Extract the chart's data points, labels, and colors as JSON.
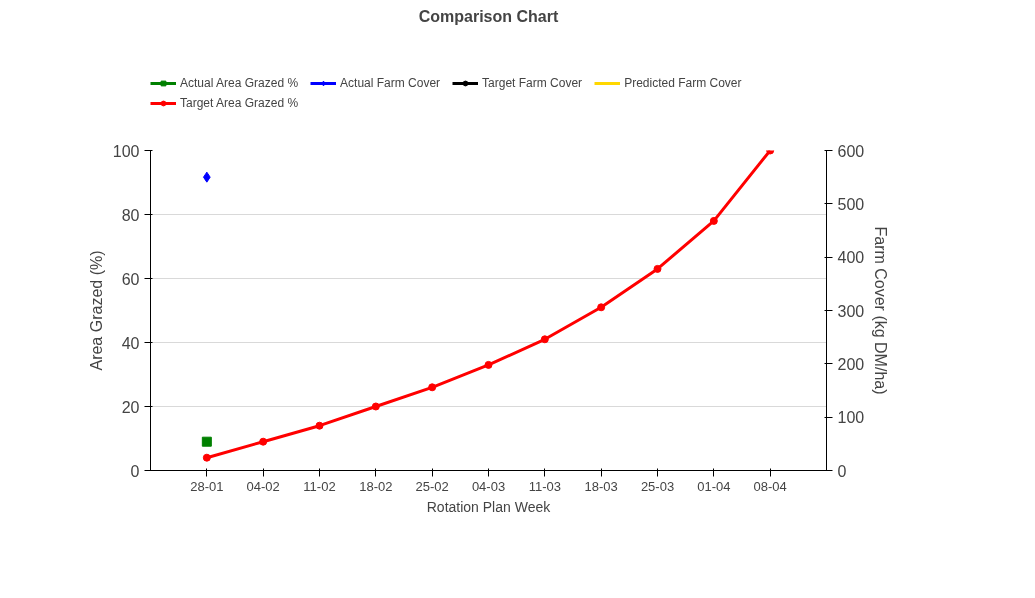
{
  "chart_data": {
    "type": "line",
    "title": "Comparison Chart",
    "xlabel": "Rotation Plan Week",
    "ylabel": "Area Grazed (%)",
    "y2label": "Farm Cover (kg DM/ha)",
    "categories": [
      "28-01",
      "04-02",
      "11-02",
      "18-02",
      "25-02",
      "04-03",
      "11-03",
      "18-03",
      "25-03",
      "01-04",
      "08-04"
    ],
    "series": [
      {
        "name": "Actual Area Grazed %",
        "color": "#008000",
        "marker": "square",
        "values": [
          9,
          null,
          null,
          null,
          null,
          null,
          null,
          null,
          null,
          null,
          null
        ]
      },
      {
        "name": "Actual Farm Cover",
        "color": "#0000ff",
        "marker": "diamond",
        "axis": "y2",
        "values": [
          550,
          null,
          null,
          null,
          null,
          null,
          null,
          null,
          null,
          null,
          null
        ]
      },
      {
        "name": "Target Farm Cover",
        "color": "#000000",
        "marker": "circle",
        "axis": "y2",
        "values": [
          null,
          null,
          null,
          null,
          null,
          null,
          null,
          null,
          null,
          null,
          null
        ]
      },
      {
        "name": "Predicted Farm Cover",
        "color": "#ffd700",
        "marker": "none",
        "axis": "y2",
        "values": [
          null,
          null,
          null,
          null,
          null,
          null,
          null,
          null,
          null,
          null,
          null
        ]
      },
      {
        "name": "Target Area Grazed %",
        "color": "#ff0000",
        "marker": "circle",
        "values": [
          4,
          9,
          14,
          20,
          26,
          33,
          41,
          51,
          63,
          78,
          100
        ]
      }
    ],
    "ylim": [
      0,
      100
    ],
    "yticks": [
      0,
      20,
      40,
      60,
      80,
      100
    ],
    "y2lim": [
      0,
      600
    ],
    "y2ticks": [
      0,
      100,
      200,
      300,
      400,
      500,
      600
    ],
    "grid": "y",
    "legend": "top"
  }
}
